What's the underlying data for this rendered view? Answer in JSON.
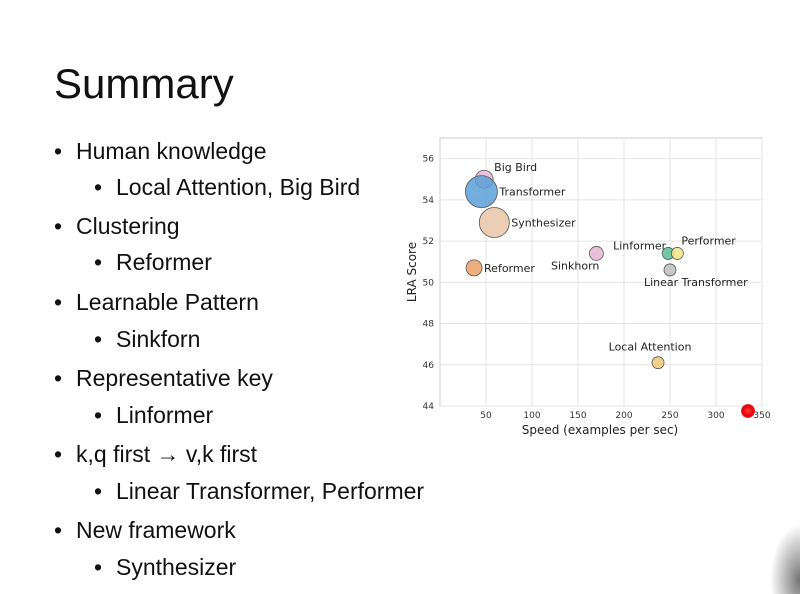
{
  "slide": {
    "title": "Summary",
    "bullets": [
      {
        "text": "Human knowledge",
        "sub": "Local Attention, Big Bird"
      },
      {
        "text": "Clustering",
        "sub": "Reformer"
      },
      {
        "text": "Learnable Pattern",
        "sub": "Sinkforn"
      },
      {
        "text": "Representative key",
        "sub": "Linformer"
      },
      {
        "text": "k,q first → v,k first",
        "sub": "Linear Transformer, Performer"
      },
      {
        "text": "New framework",
        "sub": "Synthesizer"
      }
    ],
    "bullet_glyph": "•"
  },
  "chart_data": {
    "type": "scatter",
    "xlabel": "Speed (examples per sec)",
    "ylabel": "LRA Score",
    "xlim": [
      0,
      350
    ],
    "ylim": [
      44,
      57
    ],
    "xticks": [
      50,
      100,
      150,
      200,
      250,
      300,
      350
    ],
    "yticks": [
      44,
      46,
      48,
      50,
      52,
      54,
      56
    ],
    "grid": true,
    "points": [
      {
        "label": "Big Bird",
        "x": 48,
        "y": 55.0,
        "size": 9,
        "color": "#e8b6d8"
      },
      {
        "label": "Transformer",
        "x": 45,
        "y": 54.4,
        "size": 16,
        "color": "#5aa0d8"
      },
      {
        "label": "Synthesizer",
        "x": 59,
        "y": 52.9,
        "size": 15,
        "color": "#e8c6a6"
      },
      {
        "label": "Reformer",
        "x": 37,
        "y": 50.7,
        "size": 8,
        "color": "#eba06a"
      },
      {
        "label": "Sinkhorn",
        "x": 170,
        "y": 51.4,
        "size": 7,
        "color": "#e6b4d4"
      },
      {
        "label": "Linformer",
        "x": 248,
        "y": 51.4,
        "size": 6,
        "color": "#5bbf96"
      },
      {
        "label": "Performer",
        "x": 258,
        "y": 51.4,
        "size": 6,
        "color": "#f3e58a"
      },
      {
        "label": "Linear Transformer",
        "x": 250,
        "y": 50.6,
        "size": 6,
        "color": "#bdbdbd"
      },
      {
        "label": "Local Attention",
        "x": 237,
        "y": 46.1,
        "size": 6,
        "color": "#f0c878"
      }
    ]
  }
}
